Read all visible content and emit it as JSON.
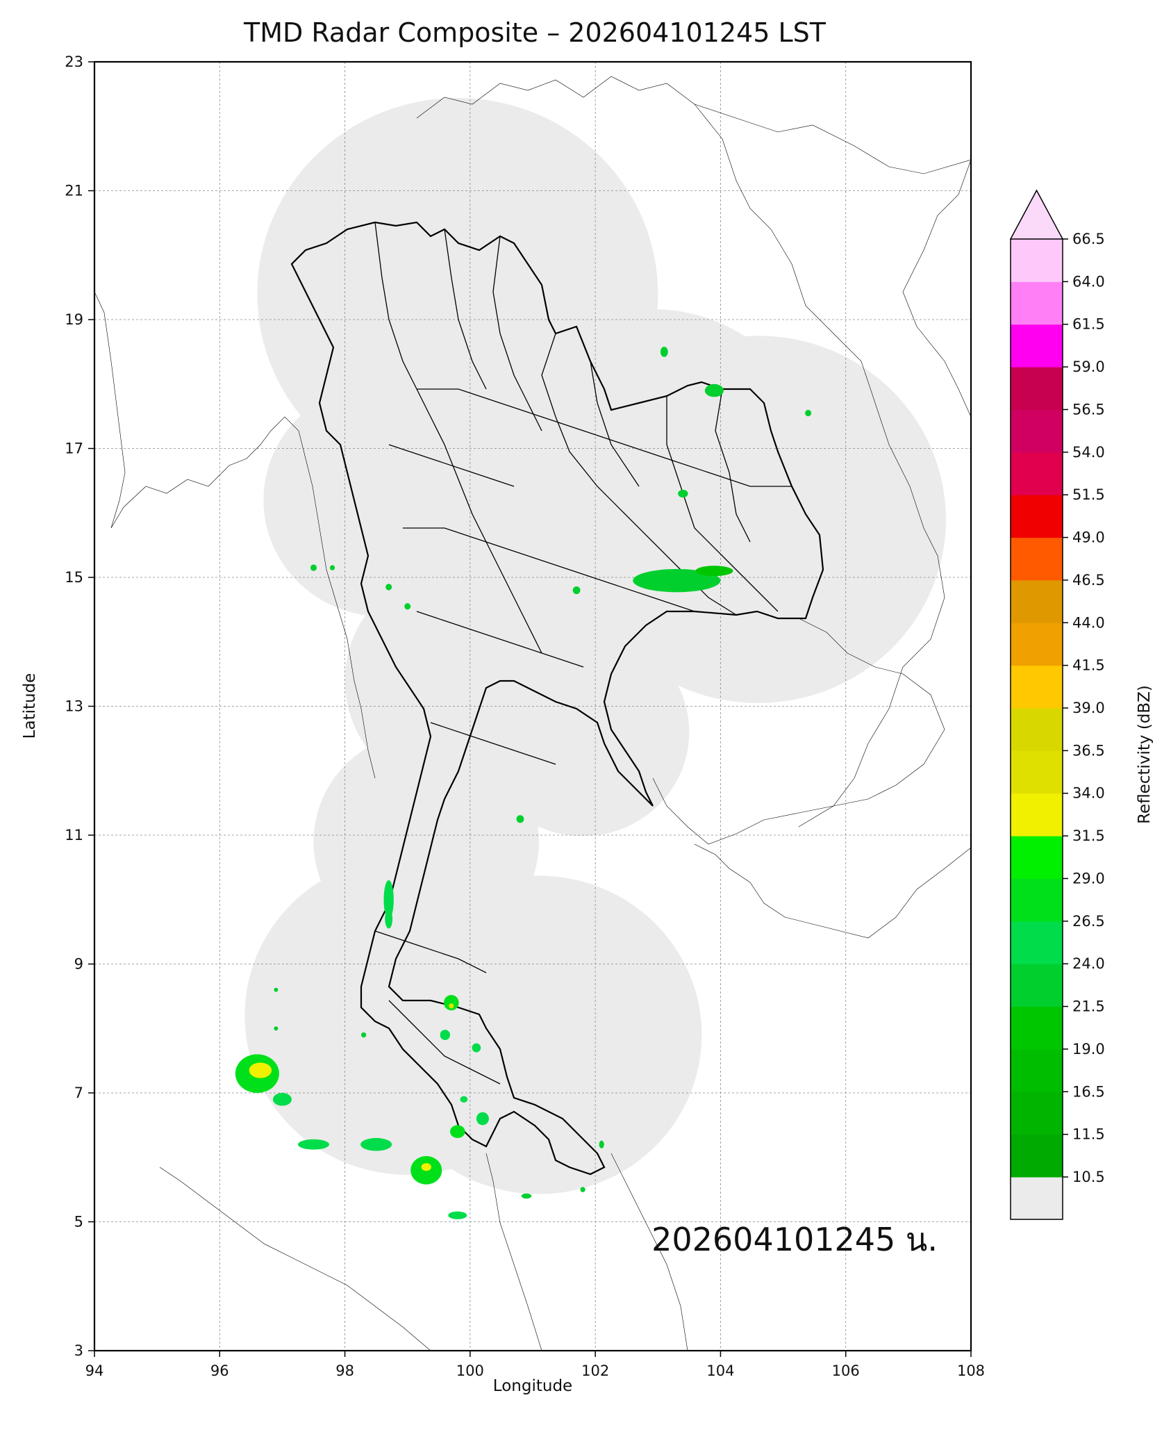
{
  "figure": {
    "title": "TMD Radar Composite – 202604101245 LST",
    "stamp": "202604101245 น.",
    "xlabel": "Longitude",
    "ylabel": "Latitude"
  },
  "axes": {
    "xlim": [
      94,
      108
    ],
    "ylim": [
      3,
      23
    ],
    "xticks": [
      "94",
      "96",
      "98",
      "100",
      "102",
      "104",
      "106",
      "108"
    ],
    "yticks": [
      "3",
      "5",
      "7",
      "9",
      "11",
      "13",
      "15",
      "17",
      "19",
      "21",
      "23"
    ],
    "grid": true
  },
  "colorbar": {
    "label": "Reflectivity (dBZ)",
    "extend": "max",
    "ticks": [
      "10.5",
      "11.5",
      "16.5",
      "19.0",
      "21.5",
      "24.0",
      "26.5",
      "29.0",
      "31.5",
      "34.0",
      "36.5",
      "39.0",
      "41.5",
      "44.0",
      "46.5",
      "49.0",
      "51.5",
      "54.0",
      "56.5",
      "59.0",
      "61.5",
      "64.0",
      "66.5"
    ],
    "below_color": "#ebebeb",
    "over_color": "#fbdaf9",
    "colors": [
      "#00aa00",
      "#00b400",
      "#00bd00",
      "#00c600",
      "#00cf2e",
      "#00dc4a",
      "#00e01a",
      "#00f000",
      "#f0f000",
      "#e0e000",
      "#d8d800",
      "#ffc800",
      "#f0a000",
      "#e09800",
      "#ff5a00",
      "#f00000",
      "#e0004e",
      "#d00060",
      "#c80050",
      "#ff00f0",
      "#ff80f6",
      "#ffc8fa",
      "#fde0fb"
    ]
  },
  "map": {
    "coverage_color": "#ebebeb",
    "border_color": "#000000",
    "coverage_circles": [
      {
        "lon": 99.8,
        "lat": 19.4,
        "r_deg": 3.2
      },
      {
        "lon": 98.6,
        "lat": 16.2,
        "r_deg": 1.9
      },
      {
        "lon": 99.9,
        "lat": 13.4,
        "r_deg": 1.9
      },
      {
        "lon": 99.3,
        "lat": 10.9,
        "r_deg": 1.8
      },
      {
        "lon": 99.0,
        "lat": 8.2,
        "r_deg": 2.6
      },
      {
        "lon": 101.1,
        "lat": 7.9,
        "r_deg": 2.6
      },
      {
        "lon": 102.9,
        "lat": 16.6,
        "r_deg": 2.7
      },
      {
        "lon": 104.6,
        "lat": 15.9,
        "r_deg": 3.0
      },
      {
        "lon": 101.6,
        "lat": 14.9,
        "r_deg": 1.8
      },
      {
        "lon": 101.8,
        "lat": 12.6,
        "r_deg": 1.7
      }
    ],
    "echoes": [
      {
        "lon": 103.3,
        "lat": 14.95,
        "rx": 0.7,
        "ry": 0.18,
        "dbz": 22
      },
      {
        "lon": 103.9,
        "lat": 15.1,
        "rx": 0.3,
        "ry": 0.08,
        "dbz": 19
      },
      {
        "lon": 96.6,
        "lat": 7.3,
        "rx": 0.35,
        "ry": 0.3,
        "dbz": 27
      },
      {
        "lon": 96.65,
        "lat": 7.35,
        "rx": 0.18,
        "ry": 0.12,
        "dbz": 33
      },
      {
        "lon": 97.0,
        "lat": 6.9,
        "rx": 0.15,
        "ry": 0.1,
        "dbz": 26
      },
      {
        "lon": 97.5,
        "lat": 6.2,
        "rx": 0.25,
        "ry": 0.08,
        "dbz": 24
      },
      {
        "lon": 98.5,
        "lat": 6.2,
        "rx": 0.25,
        "ry": 0.1,
        "dbz": 26
      },
      {
        "lon": 99.3,
        "lat": 5.8,
        "rx": 0.25,
        "ry": 0.22,
        "dbz": 27
      },
      {
        "lon": 99.3,
        "lat": 5.85,
        "rx": 0.08,
        "ry": 0.06,
        "dbz": 33
      },
      {
        "lon": 99.8,
        "lat": 5.1,
        "rx": 0.15,
        "ry": 0.06,
        "dbz": 24
      },
      {
        "lon": 99.7,
        "lat": 8.4,
        "rx": 0.12,
        "ry": 0.12,
        "dbz": 28
      },
      {
        "lon": 99.7,
        "lat": 8.35,
        "rx": 0.04,
        "ry": 0.04,
        "dbz": 34
      },
      {
        "lon": 99.8,
        "lat": 6.4,
        "rx": 0.12,
        "ry": 0.1,
        "dbz": 27
      },
      {
        "lon": 100.2,
        "lat": 6.6,
        "rx": 0.1,
        "ry": 0.1,
        "dbz": 26
      },
      {
        "lon": 98.7,
        "lat": 10.0,
        "rx": 0.08,
        "ry": 0.3,
        "dbz": 24
      },
      {
        "lon": 98.7,
        "lat": 9.7,
        "rx": 0.06,
        "ry": 0.15,
        "dbz": 26
      },
      {
        "lon": 100.8,
        "lat": 11.25,
        "rx": 0.06,
        "ry": 0.06,
        "dbz": 22
      },
      {
        "lon": 103.1,
        "lat": 18.5,
        "rx": 0.06,
        "ry": 0.08,
        "dbz": 23
      },
      {
        "lon": 103.9,
        "lat": 17.9,
        "rx": 0.15,
        "ry": 0.1,
        "dbz": 23
      },
      {
        "lon": 105.4,
        "lat": 17.55,
        "rx": 0.05,
        "ry": 0.05,
        "dbz": 22
      },
      {
        "lon": 103.4,
        "lat": 16.3,
        "rx": 0.08,
        "ry": 0.06,
        "dbz": 22
      },
      {
        "lon": 101.7,
        "lat": 14.8,
        "rx": 0.06,
        "ry": 0.06,
        "dbz": 22
      },
      {
        "lon": 97.5,
        "lat": 15.15,
        "rx": 0.05,
        "ry": 0.05,
        "dbz": 22
      },
      {
        "lon": 97.8,
        "lat": 15.15,
        "rx": 0.04,
        "ry": 0.04,
        "dbz": 22
      },
      {
        "lon": 98.7,
        "lat": 14.85,
        "rx": 0.05,
        "ry": 0.05,
        "dbz": 22
      },
      {
        "lon": 99.0,
        "lat": 14.55,
        "rx": 0.05,
        "ry": 0.05,
        "dbz": 22
      },
      {
        "lon": 99.6,
        "lat": 7.9,
        "rx": 0.08,
        "ry": 0.08,
        "dbz": 24
      },
      {
        "lon": 100.1,
        "lat": 7.7,
        "rx": 0.07,
        "ry": 0.07,
        "dbz": 24
      },
      {
        "lon": 98.3,
        "lat": 7.9,
        "rx": 0.04,
        "ry": 0.04,
        "dbz": 22
      },
      {
        "lon": 101.8,
        "lat": 5.5,
        "rx": 0.04,
        "ry": 0.04,
        "dbz": 22
      },
      {
        "lon": 100.9,
        "lat": 5.4,
        "rx": 0.08,
        "ry": 0.04,
        "dbz": 22
      },
      {
        "lon": 102.1,
        "lat": 6.2,
        "rx": 0.04,
        "ry": 0.06,
        "dbz": 22
      },
      {
        "lon": 96.9,
        "lat": 8.6,
        "rx": 0.03,
        "ry": 0.03,
        "dbz": 22
      },
      {
        "lon": 96.9,
        "lat": 8.0,
        "rx": 0.03,
        "ry": 0.03,
        "dbz": 22
      },
      {
        "lon": 99.9,
        "lat": 6.9,
        "rx": 0.06,
        "ry": 0.05,
        "dbz": 24
      }
    ]
  }
}
